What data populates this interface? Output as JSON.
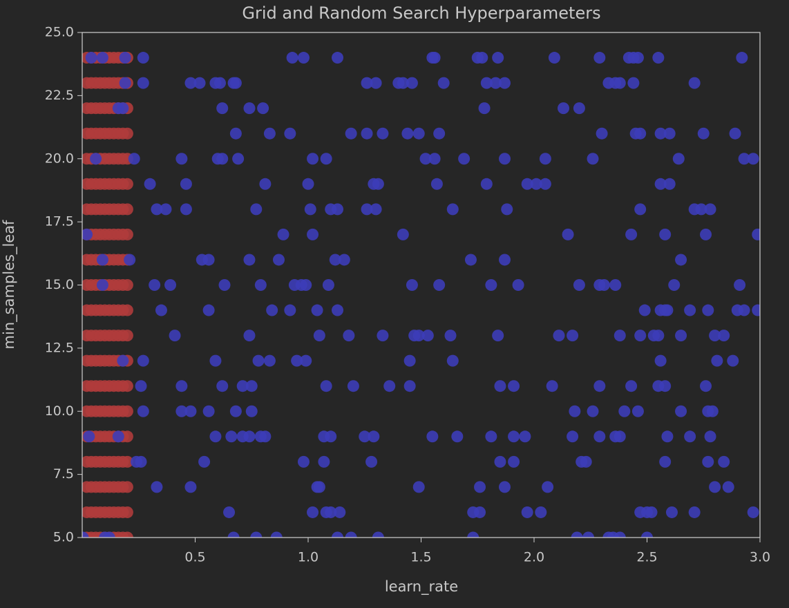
{
  "chart_data": {
    "type": "scatter",
    "title": "Grid and Random Search Hyperparameters",
    "x_label": "learn_rate",
    "y_label": "min_samples_leaf",
    "xlim": [
      0,
      3.0
    ],
    "ylim": [
      5,
      25
    ],
    "xticks": [
      0.5,
      {
        "value": 1,
        "label": "1.0"
      },
      1.5,
      {
        "value": 2,
        "label": "2.0"
      },
      2.5,
      {
        "value": 3,
        "label": "3.0"
      }
    ],
    "yticks": [
      {
        "value": 5,
        "label": "5.0"
      },
      7.5,
      {
        "value": 10,
        "label": "10.0"
      },
      12.5,
      {
        "value": 15,
        "label": "15.0"
      },
      17.5,
      {
        "value": 20,
        "label": "20.0"
      },
      22.5,
      {
        "value": 25,
        "label": "25.0"
      }
    ],
    "series": [
      {
        "color": "#b03c3c",
        "x": [
          0.02,
          0.04,
          0.06,
          0.08,
          0.1,
          0.12,
          0.14,
          0.16,
          0.18,
          0.2,
          0.02,
          0.04,
          0.06,
          0.08,
          0.1,
          0.12,
          0.14,
          0.16,
          0.18,
          0.2,
          0.02,
          0.04,
          0.06,
          0.08,
          0.1,
          0.12,
          0.14,
          0.16,
          0.18,
          0.2,
          0.02,
          0.04,
          0.06,
          0.08,
          0.1,
          0.12,
          0.14,
          0.16,
          0.18,
          0.2,
          0.02,
          0.04,
          0.06,
          0.08,
          0.1,
          0.12,
          0.14,
          0.16,
          0.18,
          0.2,
          0.02,
          0.04,
          0.06,
          0.08,
          0.1,
          0.12,
          0.14,
          0.16,
          0.18,
          0.2,
          0.02,
          0.04,
          0.06,
          0.08,
          0.1,
          0.12,
          0.14,
          0.16,
          0.18,
          0.2,
          0.02,
          0.04,
          0.06,
          0.08,
          0.1,
          0.12,
          0.14,
          0.16,
          0.18,
          0.2,
          0.02,
          0.04,
          0.06,
          0.08,
          0.1,
          0.12,
          0.14,
          0.16,
          0.18,
          0.2,
          0.02,
          0.04,
          0.06,
          0.08,
          0.1,
          0.12,
          0.14,
          0.16,
          0.18,
          0.2,
          0.02,
          0.04,
          0.06,
          0.08,
          0.1,
          0.12,
          0.14,
          0.16,
          0.18,
          0.2,
          0.02,
          0.04,
          0.06,
          0.08,
          0.1,
          0.12,
          0.14,
          0.16,
          0.18,
          0.2,
          0.02,
          0.04,
          0.06,
          0.08,
          0.1,
          0.12,
          0.14,
          0.16,
          0.18,
          0.2,
          0.02,
          0.04,
          0.06,
          0.08,
          0.1,
          0.12,
          0.14,
          0.16,
          0.18,
          0.2,
          0.02,
          0.04,
          0.06,
          0.08,
          0.1,
          0.12,
          0.14,
          0.16,
          0.18,
          0.2,
          0.02,
          0.04,
          0.06,
          0.08,
          0.1,
          0.12,
          0.14,
          0.16,
          0.18,
          0.2,
          0.02,
          0.04,
          0.06,
          0.08,
          0.1,
          0.12,
          0.14,
          0.16,
          0.18,
          0.2,
          0.02,
          0.04,
          0.06,
          0.08,
          0.1,
          0.12,
          0.14,
          0.16,
          0.18,
          0.2,
          0.02,
          0.04,
          0.06,
          0.08,
          0.1,
          0.12,
          0.14,
          0.16,
          0.18,
          0.2,
          0.02,
          0.04,
          0.06,
          0.08,
          0.1,
          0.12,
          0.14,
          0.16,
          0.18,
          0.2
        ],
        "y": [
          5,
          5,
          5,
          5,
          5,
          5,
          5,
          5,
          5,
          5,
          6,
          6,
          6,
          6,
          6,
          6,
          6,
          6,
          6,
          6,
          7,
          7,
          7,
          7,
          7,
          7,
          7,
          7,
          7,
          7,
          8,
          8,
          8,
          8,
          8,
          8,
          8,
          8,
          8,
          8,
          9,
          9,
          9,
          9,
          9,
          9,
          9,
          9,
          9,
          9,
          10,
          10,
          10,
          10,
          10,
          10,
          10,
          10,
          10,
          10,
          11,
          11,
          11,
          11,
          11,
          11,
          11,
          11,
          11,
          11,
          12,
          12,
          12,
          12,
          12,
          12,
          12,
          12,
          12,
          12,
          13,
          13,
          13,
          13,
          13,
          13,
          13,
          13,
          13,
          13,
          14,
          14,
          14,
          14,
          14,
          14,
          14,
          14,
          14,
          14,
          15,
          15,
          15,
          15,
          15,
          15,
          15,
          15,
          15,
          15,
          16,
          16,
          16,
          16,
          16,
          16,
          16,
          16,
          16,
          16,
          17,
          17,
          17,
          17,
          17,
          17,
          17,
          17,
          17,
          17,
          18,
          18,
          18,
          18,
          18,
          18,
          18,
          18,
          18,
          18,
          19,
          19,
          19,
          19,
          19,
          19,
          19,
          19,
          19,
          19,
          20,
          20,
          20,
          20,
          20,
          20,
          20,
          20,
          20,
          20,
          21,
          21,
          21,
          21,
          21,
          21,
          21,
          21,
          21,
          21,
          22,
          22,
          22,
          22,
          22,
          22,
          22,
          22,
          22,
          22,
          23,
          23,
          23,
          23,
          23,
          23,
          23,
          23,
          23,
          23,
          24,
          24,
          24,
          24,
          24,
          24,
          24,
          24,
          24,
          24
        ]
      },
      {
        "color": "#3d3db8",
        "x": [
          0.04,
          0.09,
          0.19,
          0.27,
          0.93,
          0.98,
          1.13,
          1.55,
          1.56,
          1.75,
          1.77,
          1.84,
          2.09,
          2.29,
          2.42,
          2.44,
          2.46,
          2.55,
          2.92,
          0.19,
          0.27,
          0.48,
          0.52,
          0.59,
          0.61,
          0.67,
          0.68,
          1.26,
          1.3,
          1.4,
          1.42,
          1.46,
          1.6,
          1.79,
          1.83,
          1.87,
          2.33,
          2.36,
          2.38,
          2.44,
          2.71,
          0.16,
          0.18,
          0.62,
          0.74,
          0.8,
          1.78,
          2.13,
          2.2,
          0.68,
          0.83,
          0.92,
          1.19,
          1.26,
          1.33,
          1.44,
          1.49,
          1.58,
          2.3,
          2.45,
          2.47,
          2.56,
          2.6,
          2.75,
          2.89,
          0.06,
          0.23,
          0.44,
          0.6,
          0.62,
          0.69,
          1.02,
          1.08,
          1.52,
          1.56,
          1.69,
          1.87,
          2.05,
          2.26,
          2.64,
          2.93,
          2.97,
          0.3,
          0.46,
          0.81,
          1.0,
          1.29,
          1.31,
          1.57,
          1.79,
          1.97,
          2.01,
          2.05,
          2.56,
          2.6,
          0.33,
          0.37,
          0.46,
          0.77,
          1.01,
          1.1,
          1.13,
          1.26,
          1.3,
          1.64,
          1.88,
          2.47,
          2.71,
          2.74,
          2.78,
          0.02,
          0.89,
          1.02,
          1.42,
          2.15,
          2.43,
          2.58,
          2.76,
          2.99,
          0.09,
          0.21,
          0.53,
          0.56,
          0.74,
          0.87,
          1.12,
          1.16,
          1.72,
          1.87,
          2.65,
          0.09,
          0.32,
          0.39,
          0.63,
          0.79,
          0.94,
          0.97,
          0.99,
          1.09,
          1.46,
          1.58,
          1.81,
          1.93,
          2.2,
          2.29,
          2.31,
          2.36,
          2.62,
          2.91,
          0.35,
          0.56,
          0.84,
          0.92,
          1.04,
          1.13,
          2.49,
          2.56,
          2.58,
          2.59,
          2.69,
          2.77,
          2.9,
          2.93,
          2.99,
          0.41,
          0.74,
          1.05,
          1.18,
          1.33,
          1.47,
          1.49,
          1.53,
          1.63,
          1.84,
          2.11,
          2.17,
          2.38,
          2.47,
          2.53,
          2.55,
          2.65,
          2.8,
          2.84,
          0.18,
          0.27,
          0.59,
          0.78,
          0.83,
          0.95,
          0.99,
          1.45,
          1.64,
          2.56,
          2.81,
          2.88,
          0.26,
          0.44,
          0.62,
          0.71,
          0.75,
          1.08,
          1.2,
          1.36,
          1.45,
          1.85,
          1.91,
          2.08,
          2.29,
          2.43,
          2.55,
          2.58,
          2.76,
          0.27,
          0.44,
          0.48,
          0.56,
          0.68,
          0.75,
          2.18,
          2.26,
          2.4,
          2.46,
          2.65,
          2.77,
          2.79,
          0.03,
          0.16,
          0.59,
          0.66,
          0.71,
          0.74,
          0.79,
          0.81,
          1.07,
          1.1,
          1.25,
          1.29,
          1.55,
          1.66,
          1.81,
          1.91,
          1.96,
          2.17,
          2.29,
          2.36,
          2.38,
          2.59,
          2.69,
          2.78,
          0.24,
          0.26,
          0.54,
          0.98,
          1.07,
          1.28,
          1.85,
          1.91,
          2.21,
          2.23,
          2.58,
          2.77,
          2.84,
          0.33,
          0.48,
          1.04,
          1.05,
          1.49,
          1.76,
          1.87,
          2.06,
          2.8,
          2.86,
          0.65,
          1.02,
          1.08,
          1.1,
          1.14,
          1.73,
          1.76,
          1.97,
          2.03,
          2.47,
          2.5,
          2.52,
          2.61,
          2.71,
          2.97,
          0.003,
          0.1,
          0.12,
          0.67,
          0.77,
          0.86,
          1.13,
          1.19,
          1.31,
          1.73,
          2.19,
          2.24,
          2.33,
          2.35,
          2.38,
          2.5
        ],
        "y": [
          24,
          24,
          24,
          24,
          24,
          24,
          24,
          24,
          24,
          24,
          24,
          24,
          24,
          24,
          24,
          24,
          24,
          24,
          24,
          23,
          23,
          23,
          23,
          23,
          23,
          23,
          23,
          23,
          23,
          23,
          23,
          23,
          23,
          23,
          23,
          23,
          23,
          23,
          23,
          23,
          23,
          22,
          22,
          22,
          22,
          22,
          22,
          22,
          22,
          21,
          21,
          21,
          21,
          21,
          21,
          21,
          21,
          21,
          21,
          21,
          21,
          21,
          21,
          21,
          21,
          20,
          20,
          20,
          20,
          20,
          20,
          20,
          20,
          20,
          20,
          20,
          20,
          20,
          20,
          20,
          20,
          20,
          19,
          19,
          19,
          19,
          19,
          19,
          19,
          19,
          19,
          19,
          19,
          19,
          19,
          18,
          18,
          18,
          18,
          18,
          18,
          18,
          18,
          18,
          18,
          18,
          18,
          18,
          18,
          18,
          17,
          17,
          17,
          17,
          17,
          17,
          17,
          17,
          17,
          16,
          16,
          16,
          16,
          16,
          16,
          16,
          16,
          16,
          16,
          16,
          15,
          15,
          15,
          15,
          15,
          15,
          15,
          15,
          15,
          15,
          15,
          15,
          15,
          15,
          15,
          15,
          15,
          15,
          15,
          14,
          14,
          14,
          14,
          14,
          14,
          14,
          14,
          14,
          14,
          14,
          14,
          14,
          14,
          14,
          13,
          13,
          13,
          13,
          13,
          13,
          13,
          13,
          13,
          13,
          13,
          13,
          13,
          13,
          13,
          13,
          13,
          13,
          13,
          12,
          12,
          12,
          12,
          12,
          12,
          12,
          12,
          12,
          12,
          12,
          12,
          11,
          11,
          11,
          11,
          11,
          11,
          11,
          11,
          11,
          11,
          11,
          11,
          11,
          11,
          11,
          11,
          11,
          10,
          10,
          10,
          10,
          10,
          10,
          10,
          10,
          10,
          10,
          10,
          10,
          10,
          9,
          9,
          9,
          9,
          9,
          9,
          9,
          9,
          9,
          9,
          9,
          9,
          9,
          9,
          9,
          9,
          9,
          9,
          9,
          9,
          9,
          9,
          9,
          9,
          8,
          8,
          8,
          8,
          8,
          8,
          8,
          8,
          8,
          8,
          8,
          8,
          8,
          7,
          7,
          7,
          7,
          7,
          7,
          7,
          7,
          7,
          7,
          6,
          6,
          6,
          6,
          6,
          6,
          6,
          6,
          6,
          6,
          6,
          6,
          6,
          6,
          6,
          5,
          5,
          5,
          5,
          5,
          5,
          5,
          5,
          5,
          5,
          5,
          5,
          5,
          5,
          5,
          5
        ]
      }
    ]
  }
}
